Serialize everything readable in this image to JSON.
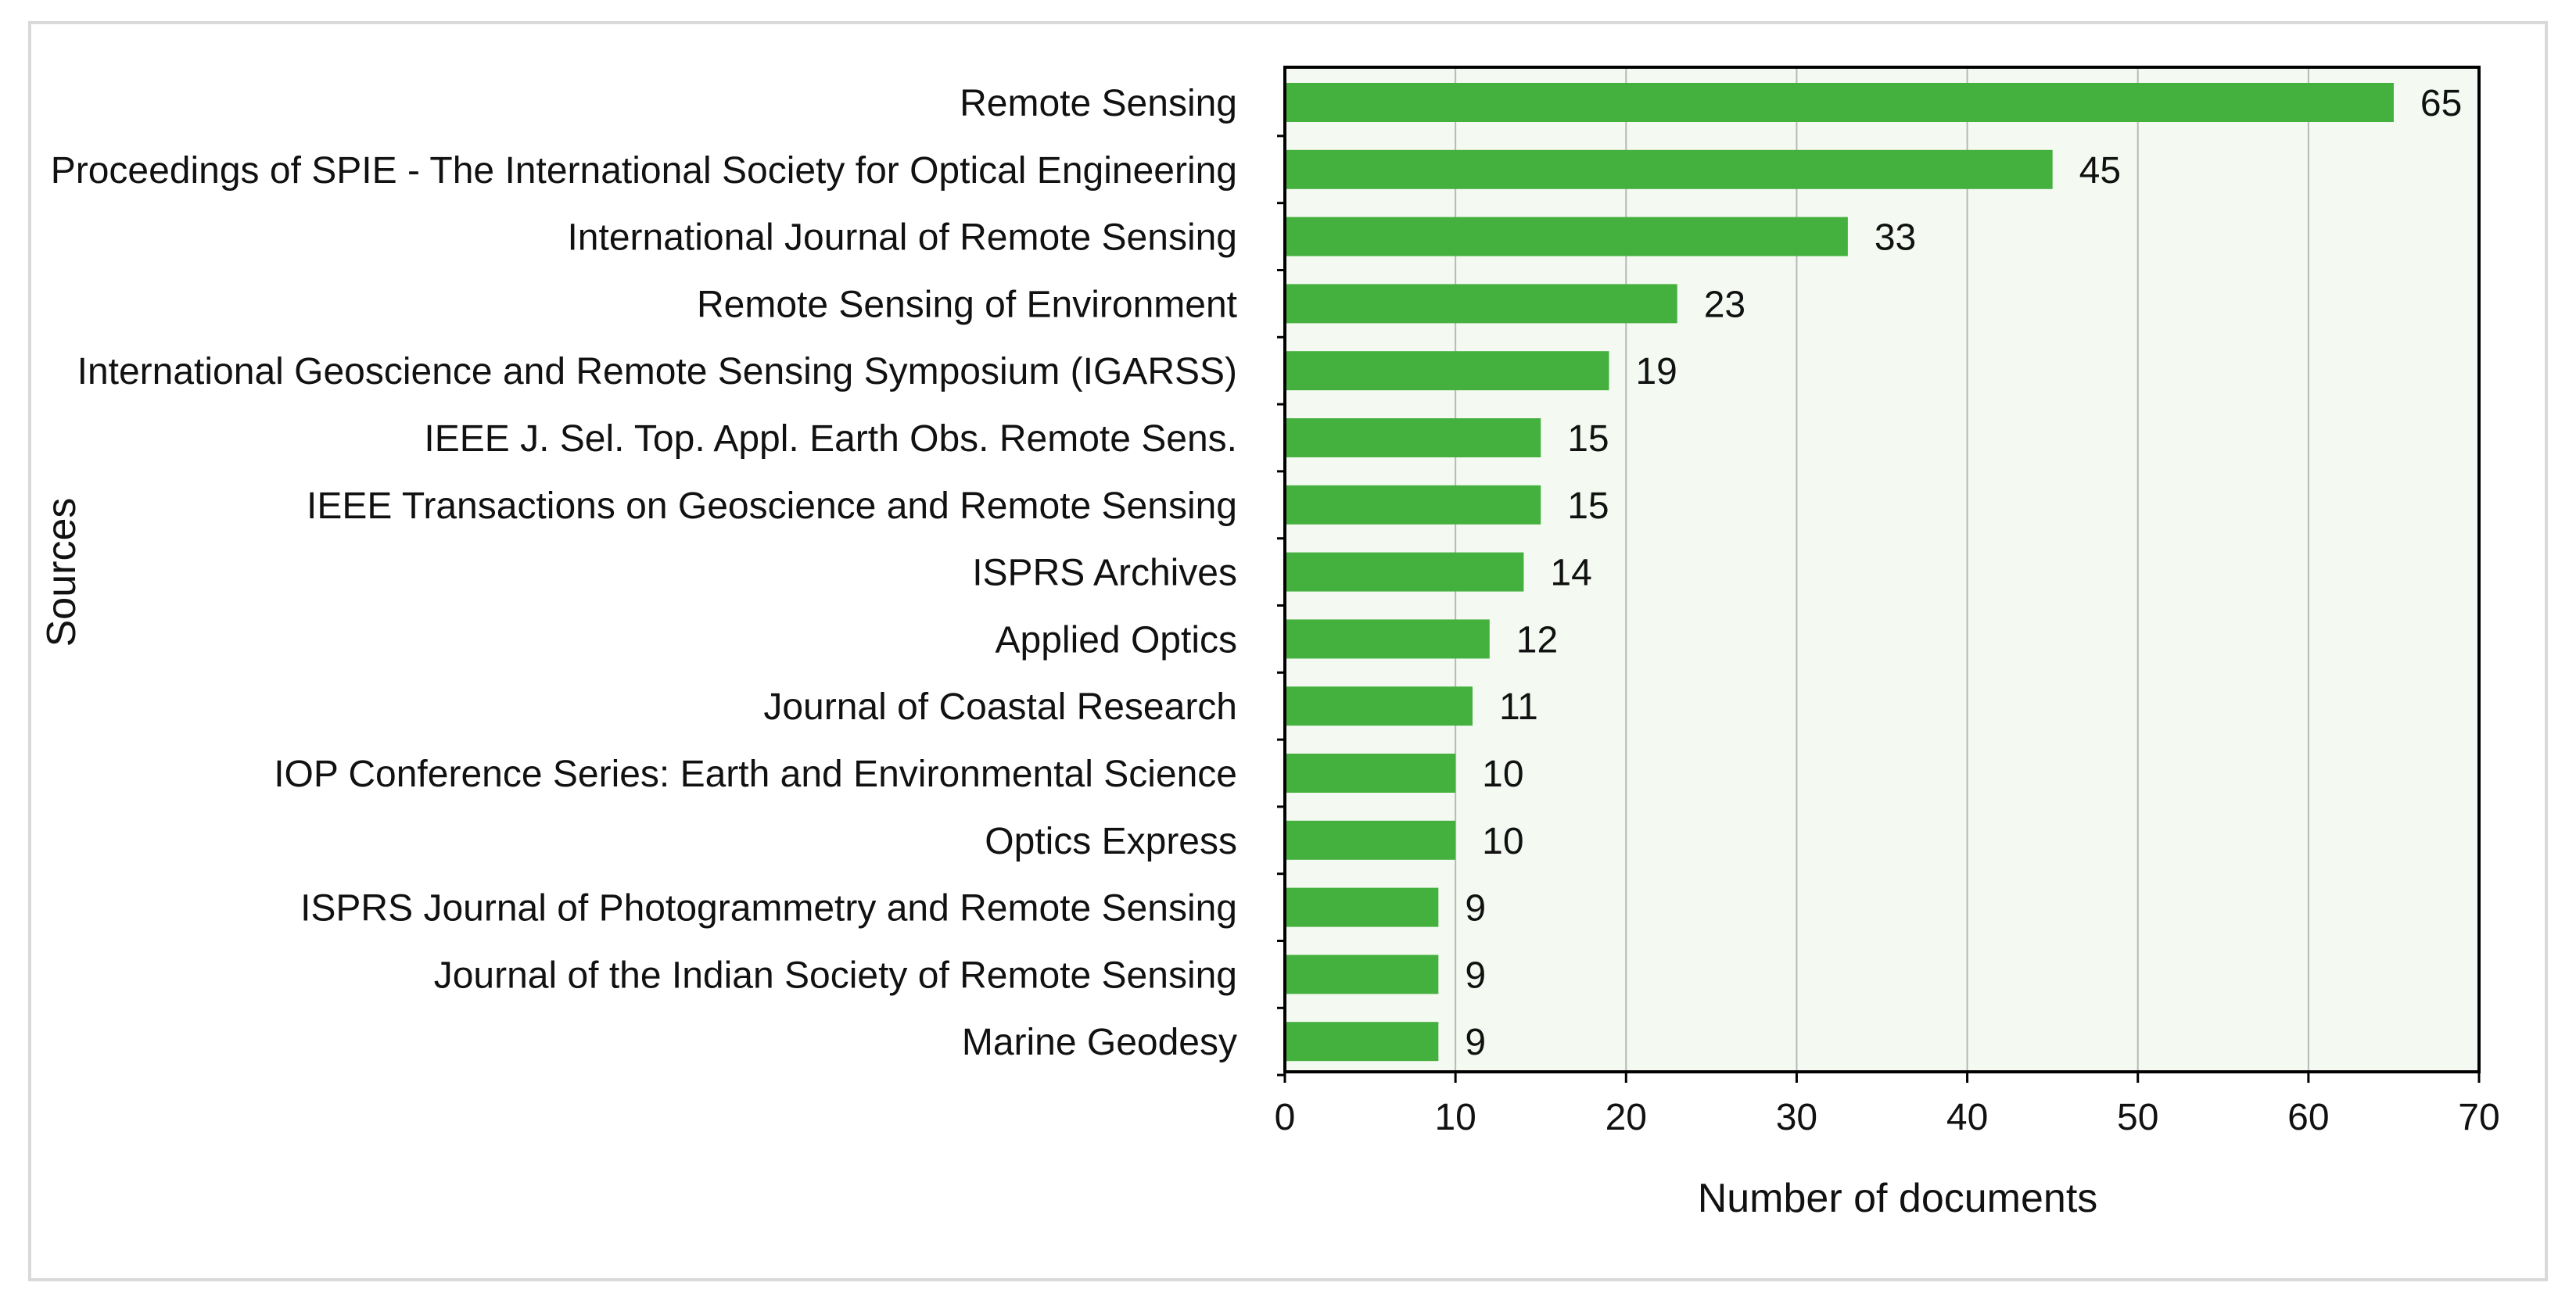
{
  "chart_data": {
    "type": "bar",
    "orientation": "horizontal",
    "title": "",
    "xlabel": "Number of documents",
    "ylabel": "Sources",
    "xlim": [
      0,
      70
    ],
    "xticks": [
      0,
      10,
      20,
      30,
      40,
      50,
      60,
      70
    ],
    "grid": "vertical",
    "categories": [
      "Remote Sensing",
      "Proceedings of SPIE - The International Society for Optical Engineering",
      "International Journal of Remote Sensing",
      "Remote Sensing of Environment",
      "International Geoscience and Remote Sensing Symposium (IGARSS)",
      "IEEE J. Sel. Top. Appl. Earth Obs. Remote Sens.",
      "IEEE Transactions on Geoscience and Remote Sensing",
      "ISPRS Archives",
      "Applied Optics",
      "Journal of Coastal Research",
      "IOP Conference Series: Earth and Environmental Science",
      "Optics Express",
      "ISPRS Journal of Photogrammetry and Remote Sensing",
      "Journal of the Indian Society of Remote Sensing",
      "Marine Geodesy"
    ],
    "values": [
      65,
      45,
      33,
      23,
      19,
      15,
      15,
      14,
      12,
      11,
      10,
      10,
      9,
      9,
      9
    ],
    "colors": {
      "bar": "#44b03e",
      "plot_background": "#f4faf1",
      "grid": "#b8b8b8",
      "axis": "#000000"
    }
  }
}
